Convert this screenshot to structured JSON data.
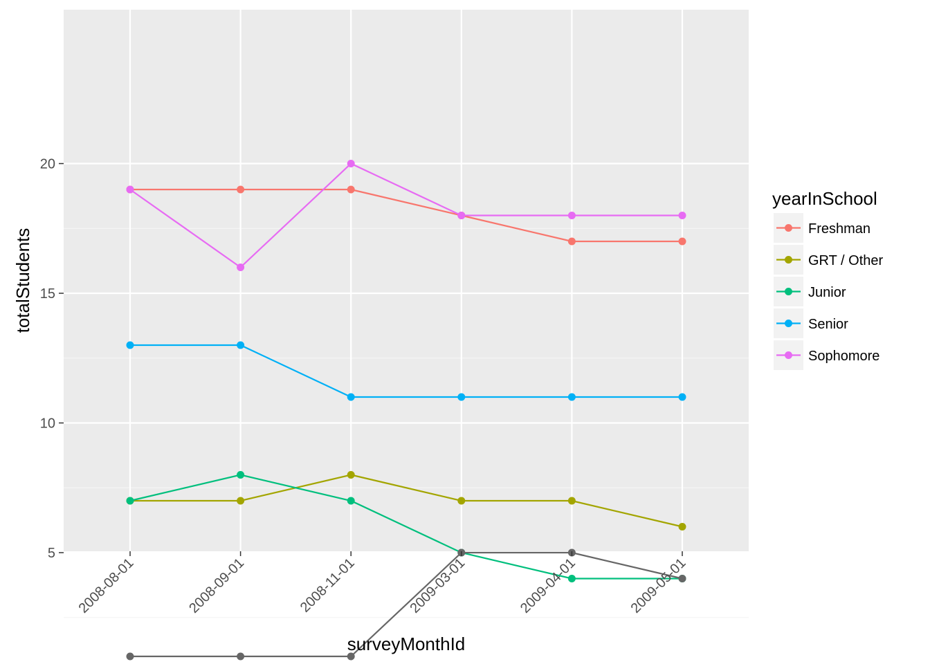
{
  "chart_data": {
    "type": "line",
    "title": "",
    "xlabel": "surveyMonthId",
    "ylabel": "totalStudents",
    "categories": [
      "2008-08-01",
      "2008-09-01",
      "2008-11-01",
      "2009-03-01",
      "2009-04-01",
      "2009-05-01"
    ],
    "yticks": [
      5,
      10,
      15,
      20
    ],
    "ylim": [
      0,
      21
    ],
    "grid": true,
    "legend": {
      "title": "yearInSchool",
      "position": "right"
    },
    "series": [
      {
        "name": "Freshman",
        "color": "#F8766D",
        "values": [
          19,
          19,
          19,
          18,
          17,
          17
        ]
      },
      {
        "name": "GRT / Other",
        "color": "#A3A500",
        "values": [
          7,
          7,
          8,
          7,
          7,
          6
        ]
      },
      {
        "name": "Junior",
        "color": "#00BF7D",
        "values": [
          7,
          8,
          7,
          5,
          4,
          4
        ]
      },
      {
        "name": "Senior",
        "color": "#00B0F6",
        "values": [
          13,
          13,
          11,
          11,
          11,
          11
        ]
      },
      {
        "name": "Sophomore",
        "color": "#E76BF3",
        "values": [
          19,
          16,
          20,
          18,
          18,
          18
        ]
      },
      {
        "name": "",
        "color": "#666666",
        "values": [
          1,
          1,
          1,
          5,
          5,
          4
        ],
        "in_legend": false
      }
    ]
  }
}
